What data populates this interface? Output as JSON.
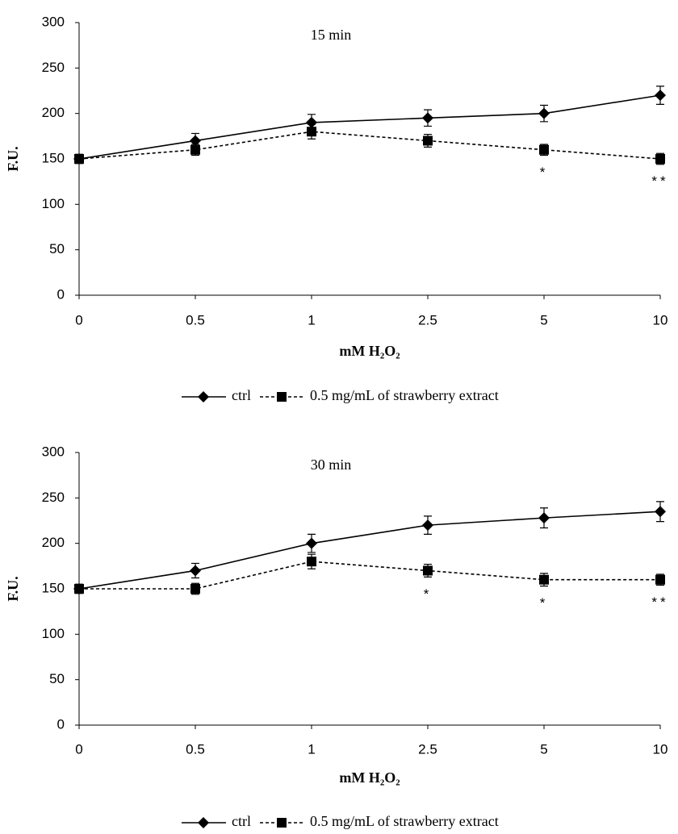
{
  "chart_data": [
    {
      "type": "line",
      "title": "15 min",
      "xlabel": "mM H₂O₂",
      "ylabel": "F.U.",
      "categories": [
        "0",
        "0.5",
        "1",
        "2.5",
        "5",
        "10"
      ],
      "ylim": [
        0,
        300
      ],
      "yticks": [
        0,
        50,
        100,
        150,
        200,
        250,
        300
      ],
      "series": [
        {
          "name": "ctrl",
          "color": "#000000",
          "dash": "solid",
          "marker": "diamond",
          "values": [
            150,
            170,
            190,
            195,
            200,
            220
          ],
          "error": [
            5,
            8,
            9,
            9,
            9,
            10
          ]
        },
        {
          "name": "0.5 mg/mL of strawberry extract",
          "color": "#000000",
          "dash": "dashed",
          "marker": "square",
          "values": [
            150,
            160,
            180,
            170,
            160,
            150
          ],
          "error": [
            5,
            6,
            8,
            7,
            6,
            6
          ]
        }
      ],
      "annotations": [
        {
          "text": "*",
          "x": "5"
        },
        {
          "text": "**",
          "x": "10"
        }
      ]
    },
    {
      "type": "line",
      "title": "30 min",
      "xlabel": "mM H₂O₂",
      "ylabel": "F.U.",
      "categories": [
        "0",
        "0.5",
        "1",
        "2.5",
        "5",
        "10"
      ],
      "ylim": [
        0,
        300
      ],
      "yticks": [
        0,
        50,
        100,
        150,
        200,
        250,
        300
      ],
      "series": [
        {
          "name": "ctrl",
          "color": "#000000",
          "dash": "solid",
          "marker": "diamond",
          "values": [
            150,
            170,
            200,
            220,
            228,
            235
          ],
          "error": [
            5,
            8,
            10,
            10,
            11,
            11
          ]
        },
        {
          "name": "0.5 mg/mL of strawberry extract",
          "color": "#000000",
          "dash": "dashed",
          "marker": "square",
          "values": [
            150,
            150,
            180,
            170,
            160,
            160
          ],
          "error": [
            5,
            6,
            8,
            7,
            7,
            6
          ]
        }
      ],
      "annotations": [
        {
          "text": "*",
          "x": "2.5"
        },
        {
          "text": "*",
          "x": "5"
        },
        {
          "text": "**",
          "x": "10"
        }
      ]
    }
  ]
}
